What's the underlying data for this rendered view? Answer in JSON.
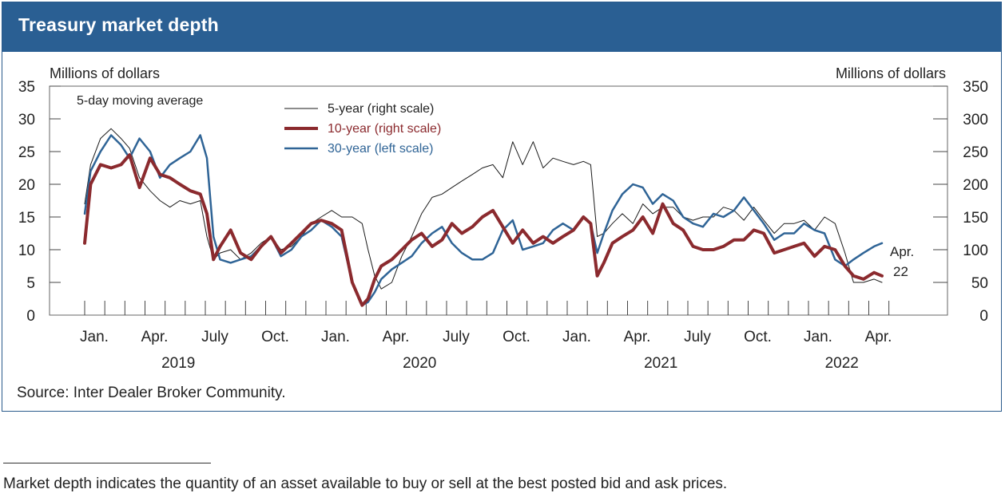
{
  "title": "Treasury market depth",
  "source": "Source: Inter Dealer Broker Community.",
  "footnote": "Market depth indicates the quantity of an asset available to buy or sell at the best posted bid and ask prices.",
  "colors": {
    "title_bar": "#2a5f93",
    "five_year": "#1a1a1a",
    "ten_year": "#8b2a2e",
    "thirty_year": "#2f6496"
  },
  "chart_data": {
    "type": "line",
    "title": "Treasury market depth",
    "left_axis": {
      "label": "Millions of dollars",
      "ylim": [
        0,
        35
      ],
      "ticks": [
        "0",
        "5",
        "10",
        "15",
        "20",
        "25",
        "30",
        "35"
      ]
    },
    "right_axis": {
      "label": "Millions of dollars",
      "ylim": [
        0,
        350
      ],
      "ticks": [
        "0",
        "50",
        "100",
        "150",
        "200",
        "250",
        "300",
        "350"
      ]
    },
    "x_ticks": [
      "Jan.",
      "Apr.",
      "July",
      "Oct.",
      "Jan.",
      "Apr.",
      "July",
      "Oct.",
      "Jan.",
      "Apr.",
      "July",
      "Oct.",
      "Jan.",
      "Apr."
    ],
    "year_labels": [
      "2019",
      "2020",
      "2021",
      "2022"
    ],
    "note": "5-day moving average",
    "end_annotation": [
      "Apr.",
      "22"
    ],
    "grid": false,
    "legend_position": "top-center",
    "series": [
      {
        "name": "5-year (right scale)",
        "axis": "right",
        "x": [
          "2019-01-01",
          "2019-01-10",
          "2019-01-25",
          "2019-02-10",
          "2019-02-25",
          "2019-03-10",
          "2019-03-25",
          "2019-04-10",
          "2019-04-25",
          "2019-05-10",
          "2019-05-25",
          "2019-06-10",
          "2019-06-25",
          "2019-07-05",
          "2019-07-15",
          "2019-07-25",
          "2019-08-10",
          "2019-08-25",
          "2019-09-10",
          "2019-09-25",
          "2019-10-10",
          "2019-10-25",
          "2019-11-10",
          "2019-11-25",
          "2019-12-10",
          "2019-12-25",
          "2020-01-10",
          "2020-01-25",
          "2020-02-10",
          "2020-02-25",
          "2020-03-05",
          "2020-03-15",
          "2020-03-25",
          "2020-04-10",
          "2020-04-25",
          "2020-05-10",
          "2020-05-25",
          "2020-06-10",
          "2020-06-25",
          "2020-07-10",
          "2020-07-25",
          "2020-08-10",
          "2020-08-25",
          "2020-09-10",
          "2020-09-25",
          "2020-10-10",
          "2020-10-25",
          "2020-11-10",
          "2020-11-25",
          "2020-12-10",
          "2020-12-25",
          "2021-01-10",
          "2021-01-25",
          "2021-02-05",
          "2021-02-15",
          "2021-02-25",
          "2021-03-10",
          "2021-03-25",
          "2021-04-10",
          "2021-04-25",
          "2021-05-10",
          "2021-05-25",
          "2021-06-10",
          "2021-06-25",
          "2021-07-10",
          "2021-07-25",
          "2021-08-10",
          "2021-08-25",
          "2021-09-10",
          "2021-09-25",
          "2021-10-10",
          "2021-10-25",
          "2021-11-10",
          "2021-11-25",
          "2021-12-10",
          "2021-12-25",
          "2022-01-10",
          "2022-01-25",
          "2022-02-10",
          "2022-02-25",
          "2022-03-10",
          "2022-03-25",
          "2022-04-10",
          "2022-04-22"
        ],
        "values": [
          170,
          230,
          270,
          285,
          270,
          255,
          210,
          190,
          175,
          165,
          175,
          170,
          175,
          120,
          85,
          95,
          100,
          85,
          95,
          110,
          120,
          100,
          105,
          120,
          140,
          150,
          160,
          150,
          150,
          140,
          100,
          60,
          40,
          50,
          90,
          120,
          155,
          180,
          185,
          195,
          205,
          215,
          225,
          230,
          210,
          265,
          230,
          265,
          225,
          240,
          235,
          230,
          235,
          230,
          120,
          125,
          140,
          155,
          140,
          170,
          155,
          165,
          165,
          150,
          145,
          150,
          150,
          165,
          160,
          145,
          165,
          145,
          125,
          140,
          140,
          145,
          130,
          150,
          140,
          95,
          50,
          50,
          55,
          50
        ]
      },
      {
        "name": "10-year (right scale)",
        "axis": "right",
        "x": [
          "2019-01-01",
          "2019-01-10",
          "2019-01-25",
          "2019-02-10",
          "2019-02-25",
          "2019-03-10",
          "2019-03-25",
          "2019-04-10",
          "2019-04-25",
          "2019-05-10",
          "2019-05-25",
          "2019-06-10",
          "2019-06-25",
          "2019-07-05",
          "2019-07-15",
          "2019-07-25",
          "2019-08-10",
          "2019-08-25",
          "2019-09-10",
          "2019-09-25",
          "2019-10-10",
          "2019-10-25",
          "2019-11-10",
          "2019-11-25",
          "2019-12-10",
          "2019-12-25",
          "2020-01-10",
          "2020-01-25",
          "2020-02-10",
          "2020-02-25",
          "2020-03-05",
          "2020-03-15",
          "2020-03-25",
          "2020-04-10",
          "2020-04-25",
          "2020-05-10",
          "2020-05-25",
          "2020-06-10",
          "2020-06-25",
          "2020-07-10",
          "2020-07-25",
          "2020-08-10",
          "2020-08-25",
          "2020-09-10",
          "2020-09-25",
          "2020-10-10",
          "2020-10-25",
          "2020-11-10",
          "2020-11-25",
          "2020-12-10",
          "2020-12-25",
          "2021-01-10",
          "2021-01-25",
          "2021-02-05",
          "2021-02-15",
          "2021-02-25",
          "2021-03-10",
          "2021-03-25",
          "2021-04-10",
          "2021-04-25",
          "2021-05-10",
          "2021-05-25",
          "2021-06-10",
          "2021-06-25",
          "2021-07-10",
          "2021-07-25",
          "2021-08-10",
          "2021-08-25",
          "2021-09-10",
          "2021-09-25",
          "2021-10-10",
          "2021-10-25",
          "2021-11-10",
          "2021-11-25",
          "2021-12-10",
          "2021-12-25",
          "2022-01-10",
          "2022-01-25",
          "2022-02-10",
          "2022-02-25",
          "2022-03-10",
          "2022-03-25",
          "2022-04-10",
          "2022-04-22"
        ],
        "values": [
          110,
          200,
          230,
          225,
          230,
          245,
          195,
          240,
          215,
          210,
          200,
          190,
          185,
          155,
          85,
          105,
          130,
          95,
          85,
          105,
          120,
          95,
          110,
          125,
          140,
          145,
          140,
          130,
          50,
          15,
          25,
          55,
          75,
          85,
          100,
          115,
          125,
          105,
          115,
          140,
          125,
          135,
          150,
          160,
          135,
          110,
          130,
          110,
          120,
          110,
          120,
          130,
          150,
          140,
          60,
          80,
          110,
          120,
          130,
          150,
          125,
          170,
          140,
          130,
          105,
          100,
          100,
          105,
          115,
          115,
          130,
          125,
          95,
          100,
          105,
          110,
          90,
          105,
          100,
          75,
          60,
          55,
          65,
          60
        ]
      },
      {
        "name": "30-year (left scale)",
        "axis": "left",
        "x": [
          "2019-01-01",
          "2019-01-10",
          "2019-01-25",
          "2019-02-10",
          "2019-02-25",
          "2019-03-10",
          "2019-03-25",
          "2019-04-10",
          "2019-04-25",
          "2019-05-10",
          "2019-05-25",
          "2019-06-10",
          "2019-06-25",
          "2019-07-05",
          "2019-07-15",
          "2019-07-25",
          "2019-08-10",
          "2019-08-25",
          "2019-09-10",
          "2019-09-25",
          "2019-10-10",
          "2019-10-25",
          "2019-11-10",
          "2019-11-25",
          "2019-12-10",
          "2019-12-25",
          "2020-01-10",
          "2020-01-25",
          "2020-02-10",
          "2020-02-25",
          "2020-03-05",
          "2020-03-15",
          "2020-03-25",
          "2020-04-10",
          "2020-04-25",
          "2020-05-10",
          "2020-05-25",
          "2020-06-10",
          "2020-06-25",
          "2020-07-10",
          "2020-07-25",
          "2020-08-10",
          "2020-08-25",
          "2020-09-10",
          "2020-09-25",
          "2020-10-10",
          "2020-10-25",
          "2020-11-10",
          "2020-11-25",
          "2020-12-10",
          "2020-12-25",
          "2021-01-10",
          "2021-01-25",
          "2021-02-05",
          "2021-02-15",
          "2021-02-25",
          "2021-03-10",
          "2021-03-25",
          "2021-04-10",
          "2021-04-25",
          "2021-05-10",
          "2021-05-25",
          "2021-06-10",
          "2021-06-25",
          "2021-07-10",
          "2021-07-25",
          "2021-08-10",
          "2021-08-25",
          "2021-09-10",
          "2021-09-25",
          "2021-10-10",
          "2021-10-25",
          "2021-11-10",
          "2021-11-25",
          "2021-12-10",
          "2021-12-25",
          "2022-01-10",
          "2022-01-25",
          "2022-02-10",
          "2022-02-25",
          "2022-03-10",
          "2022-03-25",
          "2022-04-10",
          "2022-04-22"
        ],
        "values": [
          15.5,
          22,
          25,
          27.5,
          26,
          24,
          27,
          25,
          21,
          23,
          24,
          25,
          27.5,
          24,
          12,
          8.5,
          8,
          8.5,
          9,
          10.5,
          12,
          9,
          10,
          12,
          13,
          14.5,
          13.5,
          12,
          5,
          1.5,
          2,
          3.5,
          5.5,
          7,
          8,
          9,
          11,
          12.5,
          13.5,
          11,
          9.5,
          8.5,
          8.5,
          9.5,
          13,
          14.5,
          10,
          10.5,
          11,
          13,
          14,
          13,
          15,
          14,
          9.5,
          12.5,
          16,
          18.5,
          20,
          19.5,
          17,
          18.5,
          17.5,
          15,
          14,
          13.5,
          15.5,
          15,
          16,
          18,
          16,
          14,
          11.5,
          12.5,
          12.5,
          14,
          13,
          12.5,
          8.5,
          7.5,
          8.5,
          9.5,
          10.5,
          11
        ]
      }
    ]
  }
}
